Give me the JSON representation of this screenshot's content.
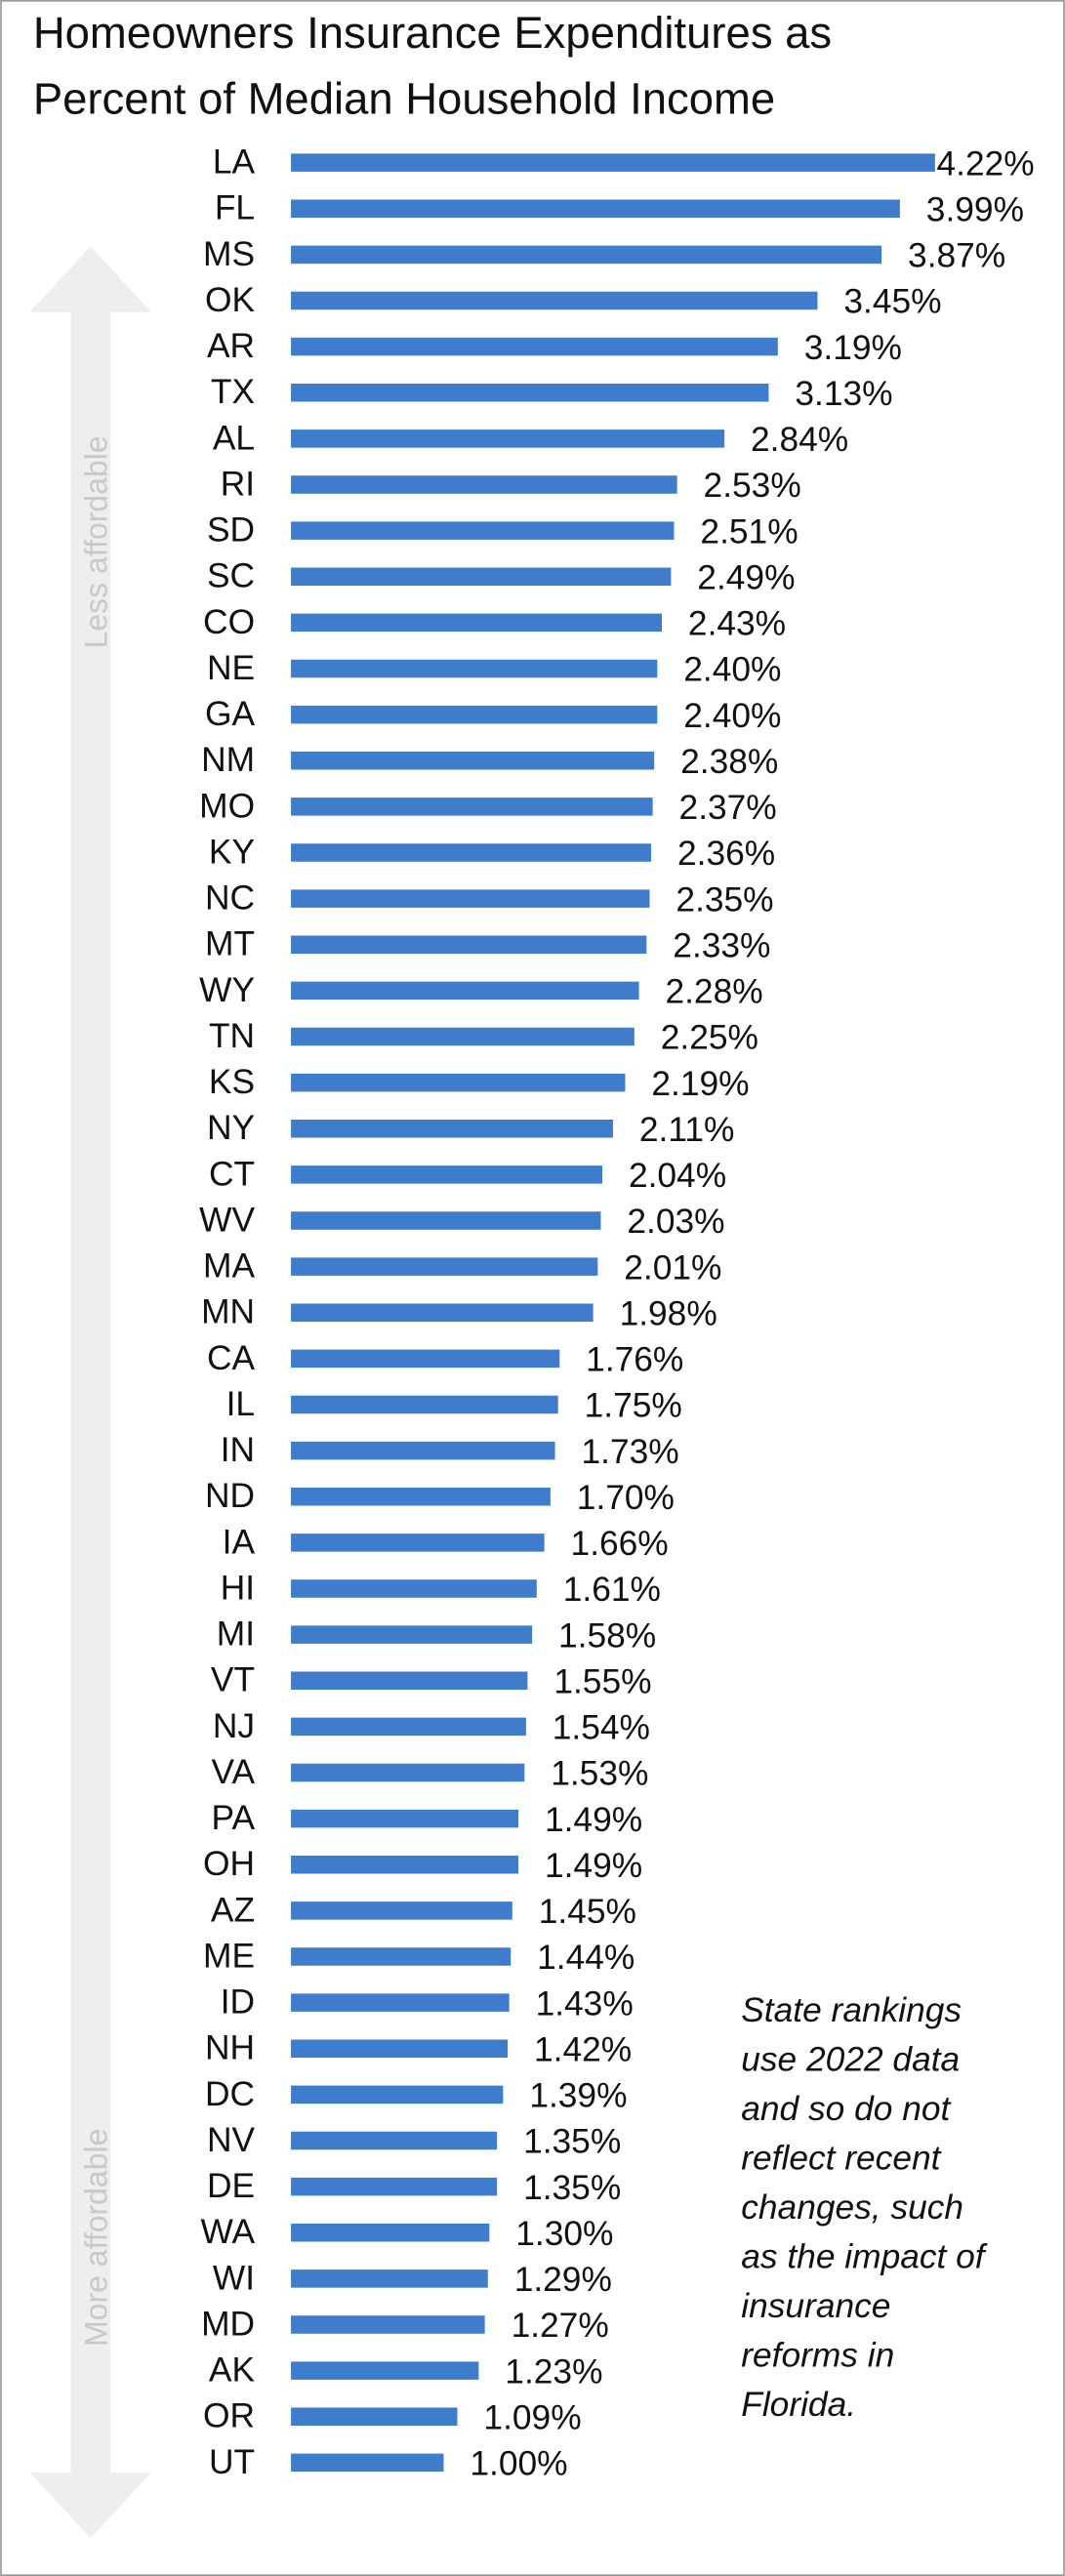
{
  "chart_data": {
    "type": "hbar",
    "title": [
      "Homeowners Insurance Expenditures as",
      "Percent of Median Household Income"
    ],
    "categories": [
      "LA",
      "FL",
      "MS",
      "OK",
      "AR",
      "TX",
      "AL",
      "RI",
      "SD",
      "SC",
      "CO",
      "NE",
      "GA",
      "NM",
      "MO",
      "KY",
      "NC",
      "MT",
      "WY",
      "TN",
      "KS",
      "NY",
      "CT",
      "WV",
      "MA",
      "MN",
      "CA",
      "IL",
      "IN",
      "ND",
      "IA",
      "HI",
      "MI",
      "VT",
      "NJ",
      "VA",
      "PA",
      "OH",
      "AZ",
      "ME",
      "ID",
      "NH",
      "DC",
      "NV",
      "DE",
      "WA",
      "WI",
      "MD",
      "AK",
      "OR",
      "UT"
    ],
    "values": [
      4.22,
      3.99,
      3.87,
      3.45,
      3.19,
      3.13,
      2.84,
      2.53,
      2.51,
      2.49,
      2.43,
      2.4,
      2.4,
      2.38,
      2.37,
      2.36,
      2.35,
      2.33,
      2.28,
      2.25,
      2.19,
      2.11,
      2.04,
      2.03,
      2.01,
      1.98,
      1.76,
      1.75,
      1.73,
      1.7,
      1.66,
      1.61,
      1.58,
      1.55,
      1.54,
      1.53,
      1.49,
      1.49,
      1.45,
      1.44,
      1.43,
      1.42,
      1.39,
      1.35,
      1.35,
      1.3,
      1.29,
      1.27,
      1.23,
      1.09,
      1.0
    ],
    "value_labels": [
      "4.22%",
      "3.99%",
      "3.87%",
      "3.45%",
      "3.19%",
      "3.13%",
      "2.84%",
      "2.53%",
      "2.51%",
      "2.49%",
      "2.43%",
      "2.40%",
      "2.40%",
      "2.38%",
      "2.37%",
      "2.36%",
      "2.35%",
      "2.33%",
      "2.28%",
      "2.25%",
      "2.19%",
      "2.11%",
      "2.04%",
      "2.03%",
      "2.01%",
      "1.98%",
      "1.76%",
      "1.75%",
      "1.73%",
      "1.70%",
      "1.66%",
      "1.61%",
      "1.58%",
      "1.55%",
      "1.54%",
      "1.53%",
      "1.49%",
      "1.49%",
      "1.45%",
      "1.44%",
      "1.43%",
      "1.42%",
      "1.39%",
      "1.35%",
      "1.35%",
      "1.30%",
      "1.29%",
      "1.27%",
      "1.23%",
      "1.09%",
      "1.00%"
    ],
    "color": "#3f7ccc",
    "arrow_labels": [
      "Less affordable",
      "More affordable"
    ],
    "note": [
      "State rankings",
      "use 2022 data",
      "and so do not",
      "reflect recent",
      "changes, such",
      "as the impact of",
      "insurance",
      "reforms in",
      "Florida."
    ]
  }
}
